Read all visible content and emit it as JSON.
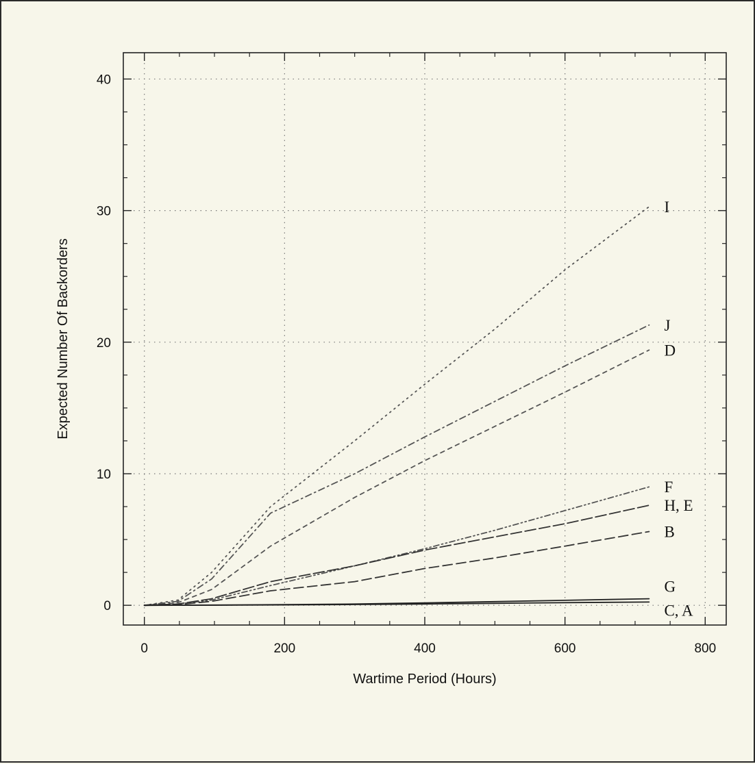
{
  "chart_data": {
    "type": "line",
    "title": "",
    "xlabel": "Wartime Period (Hours)",
    "ylabel": "Expected Number Of Backorders",
    "xlim": [
      -30,
      830
    ],
    "ylim": [
      -1.5,
      42
    ],
    "xticks": [
      0,
      200,
      400,
      600,
      800
    ],
    "yticks": [
      0,
      10,
      20,
      30,
      40
    ],
    "xtick_labels": [
      "0",
      "200",
      "400",
      "600",
      "800"
    ],
    "ytick_labels": [
      "0",
      "10",
      "20",
      "30",
      "40"
    ],
    "grid": true,
    "series": [
      {
        "name": "I",
        "label": "I",
        "color": "#555555",
        "dash": "2,6",
        "x": [
          0,
          48,
          96,
          180,
          300,
          400,
          500,
          600,
          720
        ],
        "y": [
          0,
          0.4,
          2.5,
          7.5,
          12.5,
          16.8,
          21.0,
          25.5,
          30.3
        ]
      },
      {
        "name": "J",
        "label": "J",
        "color": "#555555",
        "dash": "9,5,2,5",
        "x": [
          0,
          48,
          96,
          180,
          300,
          400,
          500,
          600,
          720
        ],
        "y": [
          0,
          0.3,
          2.0,
          7.0,
          10.0,
          12.8,
          15.5,
          18.2,
          21.3
        ]
      },
      {
        "name": "D",
        "label": "D",
        "color": "#555555",
        "dash": "6,6",
        "x": [
          0,
          48,
          96,
          180,
          300,
          400,
          500,
          600,
          720
        ],
        "y": [
          0,
          0.2,
          1.2,
          4.5,
          8.2,
          11.0,
          13.6,
          16.2,
          19.4
        ]
      },
      {
        "name": "F",
        "label": "F",
        "color": "#555555",
        "dash": "8,4,2,4,2,4",
        "x": [
          0,
          48,
          96,
          180,
          300,
          400,
          500,
          600,
          720
        ],
        "y": [
          0,
          0.1,
          0.4,
          1.5,
          3.0,
          4.3,
          5.7,
          7.2,
          9.0
        ]
      },
      {
        "name": "H, E",
        "label": "H, E",
        "color": "#333333",
        "dash": "16,5",
        "x": [
          0,
          48,
          96,
          180,
          300,
          400,
          500,
          600,
          720
        ],
        "y": [
          0,
          0.1,
          0.5,
          1.8,
          3.0,
          4.2,
          5.2,
          6.2,
          7.6
        ]
      },
      {
        "name": "B",
        "label": "B",
        "color": "#333333",
        "dash": "14,6",
        "x": [
          0,
          48,
          96,
          180,
          300,
          400,
          500,
          600,
          720
        ],
        "y": [
          0,
          0.05,
          0.3,
          1.1,
          1.8,
          2.8,
          3.6,
          4.5,
          5.6
        ]
      },
      {
        "name": "G",
        "label": "G",
        "color": "#222222",
        "dash": "",
        "x": [
          0,
          100,
          200,
          300,
          400,
          500,
          600,
          720
        ],
        "y": [
          0,
          0.02,
          0.05,
          0.1,
          0.18,
          0.28,
          0.38,
          0.5
        ]
      },
      {
        "name": "C, A",
        "label": "C, A",
        "color": "#222222",
        "dash": "",
        "x": [
          0,
          100,
          200,
          300,
          400,
          500,
          600,
          720
        ],
        "y": [
          0,
          0.01,
          0.03,
          0.06,
          0.1,
          0.15,
          0.2,
          0.25
        ]
      }
    ]
  }
}
